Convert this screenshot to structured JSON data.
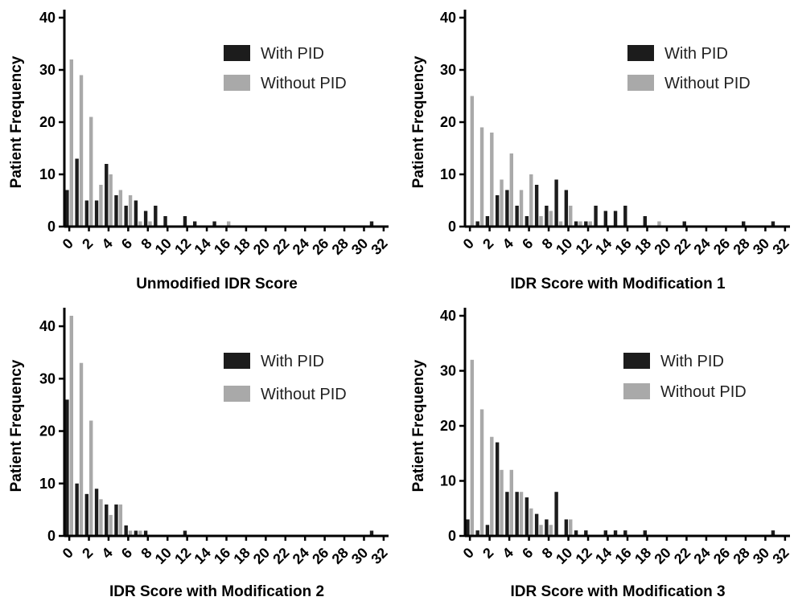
{
  "figure": {
    "legend_labels": [
      "With PID",
      "Without PID"
    ],
    "colors": {
      "with_pid": "#1c1c1c",
      "without_pid": "#a9a9a9",
      "axis": "#000000"
    }
  },
  "chart_data": [
    {
      "type": "bar",
      "xlabel": "Unmodified IDR Score",
      "ylabel": "Patient Frequency",
      "xlim": [
        0,
        32
      ],
      "ylim": [
        0,
        40
      ],
      "x_ticks": [
        0,
        2,
        4,
        6,
        8,
        10,
        12,
        14,
        16,
        18,
        20,
        22,
        24,
        26,
        28,
        30,
        32
      ],
      "y_ticks": [
        0,
        10,
        20,
        30,
        40
      ],
      "legend_position": "top-right",
      "series": [
        {
          "name": "With PID",
          "x": [
            0,
            1,
            2,
            3,
            4,
            5,
            6,
            7,
            8,
            9,
            10,
            12,
            13,
            15,
            31
          ],
          "values": [
            7,
            13,
            5,
            5,
            12,
            6,
            4,
            5,
            3,
            4,
            2,
            2,
            1,
            1,
            1
          ]
        },
        {
          "name": "Without PID",
          "x": [
            0,
            1,
            2,
            3,
            4,
            5,
            6,
            7,
            8,
            16
          ],
          "values": [
            32,
            29,
            21,
            8,
            10,
            7,
            6,
            1,
            1,
            1
          ]
        }
      ]
    },
    {
      "type": "bar",
      "xlabel": "IDR Score with Modification 1",
      "ylabel": "Patient Frequency",
      "xlim": [
        0,
        32
      ],
      "ylim": [
        0,
        40
      ],
      "x_ticks": [
        0,
        2,
        4,
        6,
        8,
        10,
        12,
        14,
        16,
        18,
        20,
        22,
        24,
        26,
        28,
        30,
        32
      ],
      "y_ticks": [
        0,
        10,
        20,
        30,
        40
      ],
      "legend_position": "top-right",
      "series": [
        {
          "name": "With PID",
          "x": [
            1,
            2,
            3,
            4,
            5,
            6,
            7,
            8,
            9,
            10,
            11,
            12,
            13,
            14,
            15,
            16,
            18,
            22,
            28,
            31
          ],
          "values": [
            1,
            2,
            6,
            7,
            4,
            2,
            8,
            4,
            9,
            7,
            1,
            1,
            4,
            3,
            3,
            4,
            2,
            1,
            1,
            1
          ]
        },
        {
          "name": "Without PID",
          "x": [
            0,
            1,
            2,
            3,
            4,
            5,
            6,
            7,
            8,
            9,
            10,
            11,
            12,
            19
          ],
          "values": [
            25,
            19,
            18,
            9,
            14,
            7,
            10,
            2,
            3,
            1,
            4,
            1,
            1,
            1
          ]
        }
      ]
    },
    {
      "type": "bar",
      "xlabel": "IDR Score with Modification 2",
      "ylabel": "Patient Frequency",
      "xlim": [
        0,
        32
      ],
      "ylim": [
        0,
        42
      ],
      "x_ticks": [
        0,
        2,
        4,
        6,
        8,
        10,
        12,
        14,
        16,
        18,
        20,
        22,
        24,
        26,
        28,
        30,
        32
      ],
      "y_ticks": [
        0,
        10,
        20,
        30,
        40
      ],
      "legend_position": "top-right",
      "series": [
        {
          "name": "With PID",
          "x": [
            0,
            1,
            2,
            3,
            4,
            5,
            6,
            7,
            8,
            12,
            31
          ],
          "values": [
            26,
            10,
            8,
            9,
            6,
            6,
            2,
            1,
            1,
            1,
            1
          ]
        },
        {
          "name": "Without PID",
          "x": [
            0,
            1,
            2,
            3,
            4,
            5,
            6,
            7
          ],
          "values": [
            42,
            33,
            22,
            7,
            4,
            6,
            1,
            1
          ]
        }
      ]
    },
    {
      "type": "bar",
      "xlabel": "IDR Score with Modification 3",
      "ylabel": "Patient Frequency",
      "xlim": [
        0,
        32
      ],
      "ylim": [
        0,
        40
      ],
      "x_ticks": [
        0,
        2,
        4,
        6,
        8,
        10,
        12,
        14,
        16,
        18,
        20,
        22,
        24,
        26,
        28,
        30,
        32
      ],
      "y_ticks": [
        0,
        10,
        20,
        30,
        40
      ],
      "legend_position": "top-right",
      "series": [
        {
          "name": "With PID",
          "x": [
            0,
            1,
            2,
            3,
            4,
            5,
            6,
            7,
            8,
            9,
            10,
            11,
            12,
            14,
            15,
            16,
            18,
            31
          ],
          "values": [
            3,
            1,
            2,
            17,
            8,
            8,
            7,
            4,
            3,
            8,
            3,
            1,
            1,
            1,
            1,
            1,
            1,
            1
          ]
        },
        {
          "name": "Without PID",
          "x": [
            0,
            1,
            2,
            3,
            4,
            5,
            6,
            7,
            8,
            10
          ],
          "values": [
            32,
            23,
            18,
            12,
            12,
            8,
            5,
            2,
            2,
            3
          ]
        }
      ]
    }
  ]
}
